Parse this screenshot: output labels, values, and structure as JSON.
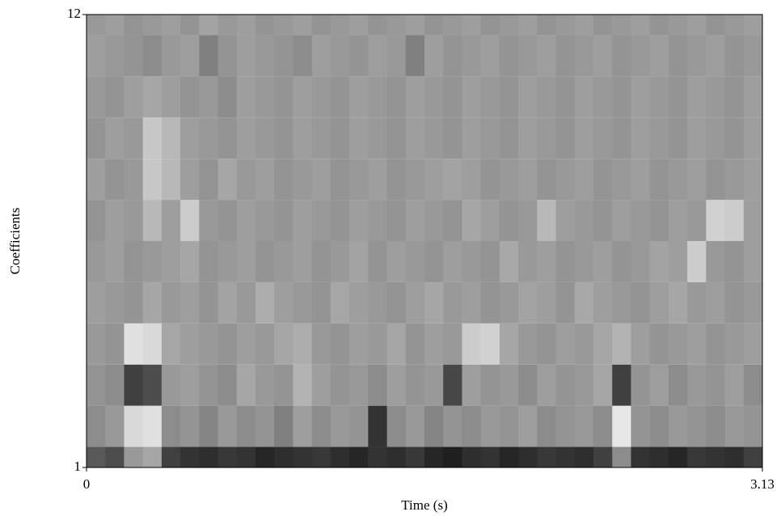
{
  "chart_data": {
    "type": "heatmap",
    "x_label": "Time (s)",
    "y_label": "Coefficients",
    "xlim": [
      0,
      3.13
    ],
    "xticks": [
      0,
      3.13
    ],
    "ylim": [
      1,
      12
    ],
    "yticks": [
      1,
      12
    ],
    "zlim": [
      0,
      100
    ],
    "colormap": [
      "#000000",
      "#ffffff"
    ],
    "z": [
      [
        35,
        30,
        60,
        65,
        25,
        20,
        18,
        22,
        20,
        15,
        18,
        20,
        22,
        18,
        15,
        20,
        18,
        22,
        15,
        12,
        18,
        20,
        15,
        18,
        22,
        20,
        18,
        25,
        55,
        20,
        18,
        15,
        22,
        20,
        18,
        25
      ],
      [
        55,
        60,
        85,
        88,
        55,
        58,
        52,
        60,
        55,
        58,
        50,
        62,
        55,
        60,
        58,
        20,
        55,
        60,
        52,
        58,
        55,
        60,
        58,
        62,
        55,
        58,
        60,
        55,
        90,
        58,
        55,
        60,
        58,
        55,
        60,
        58
      ],
      [
        58,
        55,
        25,
        30,
        60,
        62,
        58,
        55,
        65,
        60,
        58,
        70,
        62,
        58,
        60,
        55,
        62,
        58,
        60,
        28,
        62,
        58,
        60,
        55,
        62,
        58,
        60,
        65,
        25,
        58,
        62,
        55,
        60,
        58,
        62,
        55
      ],
      [
        60,
        58,
        88,
        85,
        65,
        62,
        60,
        58,
        62,
        60,
        65,
        68,
        60,
        58,
        62,
        60,
        65,
        58,
        62,
        60,
        80,
        82,
        65,
        60,
        58,
        62,
        60,
        65,
        70,
        62,
        58,
        60,
        62,
        58,
        60,
        62
      ],
      [
        62,
        60,
        58,
        65,
        60,
        62,
        58,
        64,
        60,
        68,
        62,
        60,
        58,
        65,
        62,
        60,
        58,
        62,
        65,
        60,
        62,
        58,
        60,
        64,
        62,
        58,
        66,
        62,
        60,
        58,
        62,
        65,
        60,
        62,
        58,
        60
      ],
      [
        60,
        62,
        58,
        60,
        62,
        65,
        58,
        60,
        62,
        58,
        60,
        62,
        58,
        60,
        64,
        58,
        62,
        60,
        58,
        62,
        60,
        58,
        66,
        60,
        62,
        58,
        60,
        62,
        58,
        60,
        64,
        62,
        80,
        60,
        58,
        62
      ],
      [
        58,
        62,
        60,
        72,
        62,
        80,
        60,
        58,
        62,
        60,
        58,
        62,
        60,
        58,
        62,
        60,
        58,
        62,
        60,
        58,
        65,
        62,
        58,
        60,
        72,
        62,
        60,
        58,
        62,
        60,
        58,
        62,
        60,
        82,
        80,
        62
      ],
      [
        62,
        58,
        60,
        78,
        72,
        62,
        58,
        65,
        60,
        62,
        58,
        60,
        62,
        58,
        60,
        62,
        58,
        60,
        62,
        64,
        62,
        58,
        60,
        62,
        58,
        60,
        62,
        58,
        60,
        62,
        58,
        60,
        62,
        58,
        60,
        62
      ],
      [
        58,
        62,
        60,
        78,
        72,
        62,
        60,
        58,
        62,
        60,
        58,
        62,
        60,
        58,
        62,
        60,
        58,
        62,
        60,
        58,
        62,
        60,
        58,
        62,
        60,
        58,
        62,
        60,
        58,
        62,
        60,
        58,
        62,
        60,
        58,
        62
      ],
      [
        60,
        58,
        62,
        65,
        62,
        58,
        60,
        55,
        62,
        60,
        58,
        62,
        60,
        58,
        62,
        60,
        58,
        62,
        60,
        58,
        62,
        60,
        58,
        62,
        60,
        58,
        62,
        60,
        58,
        62,
        60,
        58,
        62,
        60,
        58,
        62
      ],
      [
        62,
        60,
        58,
        55,
        60,
        62,
        50,
        58,
        62,
        60,
        58,
        55,
        62,
        60,
        58,
        62,
        60,
        50,
        62,
        58,
        60,
        62,
        58,
        60,
        62,
        58,
        60,
        62,
        58,
        60,
        62,
        58,
        60,
        62,
        58,
        60
      ],
      [
        60,
        62,
        58,
        60,
        62,
        58,
        64,
        60,
        62,
        58,
        60,
        62,
        58,
        60,
        62,
        58,
        60,
        62,
        58,
        60,
        62,
        58,
        60,
        62,
        58,
        60,
        62,
        58,
        60,
        62,
        58,
        60,
        62,
        58,
        60,
        62
      ]
    ]
  }
}
